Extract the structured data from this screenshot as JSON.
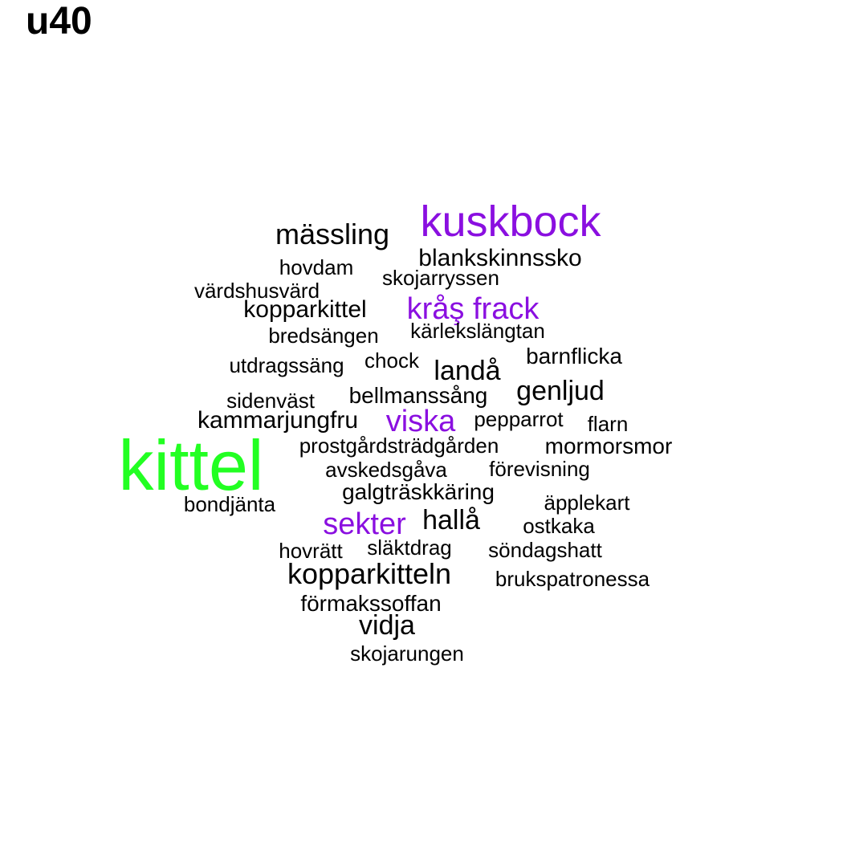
{
  "title": "u40",
  "colors": {
    "default": "#000000",
    "highlight": "#8a0fe0",
    "top": "#22ff22"
  },
  "words": [
    {
      "text": "kittel",
      "weight": 88,
      "color": "top"
    },
    {
      "text": "kuskbock",
      "weight": 54,
      "color": "highlight"
    },
    {
      "text": "kopparkitteln",
      "weight": 36,
      "color": "default"
    },
    {
      "text": "mässling",
      "weight": 36,
      "color": "default"
    },
    {
      "text": "kråş frack",
      "weight": 38,
      "color": "highlight"
    },
    {
      "text": "viska",
      "weight": 38,
      "color": "highlight"
    },
    {
      "text": "sekter",
      "weight": 38,
      "color": "highlight"
    },
    {
      "text": "landå",
      "weight": 34,
      "color": "default"
    },
    {
      "text": "genljud",
      "weight": 34,
      "color": "default"
    },
    {
      "text": "hallå",
      "weight": 34,
      "color": "default"
    },
    {
      "text": "vidja",
      "weight": 34,
      "color": "default"
    },
    {
      "text": "blankskinnssko",
      "weight": 30,
      "color": "default"
    },
    {
      "text": "kammarjungfru",
      "weight": 30,
      "color": "default"
    },
    {
      "text": "kopparkittel",
      "weight": 30,
      "color": "default"
    },
    {
      "text": "mormorsmor",
      "weight": 28,
      "color": "default"
    },
    {
      "text": "bellmanssång",
      "weight": 28,
      "color": "default"
    },
    {
      "text": "galgträskkäring",
      "weight": 28,
      "color": "default"
    },
    {
      "text": "förmakssoffan",
      "weight": 28,
      "color": "default"
    },
    {
      "text": "barnflicka",
      "weight": 28,
      "color": "default"
    },
    {
      "text": "hovdam",
      "weight": 26,
      "color": "default"
    },
    {
      "text": "skojarryssen",
      "weight": 26,
      "color": "default"
    },
    {
      "text": "värdshusvärd",
      "weight": 26,
      "color": "default"
    },
    {
      "text": "bredsängen",
      "weight": 26,
      "color": "default"
    },
    {
      "text": "kärlekslängtan",
      "weight": 26,
      "color": "default"
    },
    {
      "text": "utdragssäng",
      "weight": 26,
      "color": "default"
    },
    {
      "text": "chock",
      "weight": 26,
      "color": "default"
    },
    {
      "text": "sidenväst",
      "weight": 26,
      "color": "default"
    },
    {
      "text": "pepparrot",
      "weight": 26,
      "color": "default"
    },
    {
      "text": "flarn",
      "weight": 26,
      "color": "default"
    },
    {
      "text": "prostgårdsträdgården",
      "weight": 26,
      "color": "default"
    },
    {
      "text": "avskedsgåva",
      "weight": 26,
      "color": "default"
    },
    {
      "text": "förevisning",
      "weight": 26,
      "color": "default"
    },
    {
      "text": "bondjänta",
      "weight": 26,
      "color": "default"
    },
    {
      "text": "äpplekart",
      "weight": 26,
      "color": "default"
    },
    {
      "text": "ostkaka",
      "weight": 26,
      "color": "default"
    },
    {
      "text": "hovrätt",
      "weight": 26,
      "color": "default"
    },
    {
      "text": "släktdrag",
      "weight": 26,
      "color": "default"
    },
    {
      "text": "söndagshatt",
      "weight": 26,
      "color": "default"
    },
    {
      "text": "brukspatronessa",
      "weight": 26,
      "color": "default"
    },
    {
      "text": "skojarungen",
      "weight": 26,
      "color": "default"
    }
  ]
}
